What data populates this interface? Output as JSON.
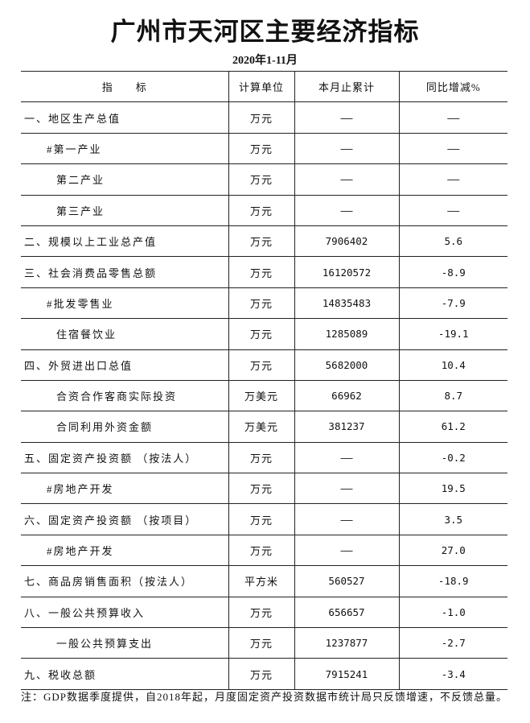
{
  "title": "广州市天河区主要经济指标",
  "subtitle": "2020年1-11月",
  "table": {
    "headers": [
      "指　　标",
      "计算单位",
      "本月止累计",
      "同比增减%"
    ],
    "rows": [
      {
        "name": "一、地区生产总值",
        "indent": 0,
        "unit": "万元",
        "cumulative": "——",
        "yoy": "——"
      },
      {
        "name": "#第一产业",
        "indent": 1,
        "unit": "万元",
        "cumulative": "——",
        "yoy": "——"
      },
      {
        "name": "第二产业",
        "indent": 2,
        "unit": "万元",
        "cumulative": "——",
        "yoy": "——"
      },
      {
        "name": "第三产业",
        "indent": 2,
        "unit": "万元",
        "cumulative": "——",
        "yoy": "——"
      },
      {
        "name": "二、规模以上工业总产值",
        "indent": 0,
        "unit": "万元",
        "cumulative": "7906402",
        "yoy": "5.6"
      },
      {
        "name": "三、社会消费品零售总额",
        "indent": 0,
        "unit": "万元",
        "cumulative": "16120572",
        "yoy": "-8.9"
      },
      {
        "name": "#批发零售业",
        "indent": 1,
        "unit": "万元",
        "cumulative": "14835483",
        "yoy": "-7.9"
      },
      {
        "name": "住宿餐饮业",
        "indent": 2,
        "unit": "万元",
        "cumulative": "1285089",
        "yoy": "-19.1"
      },
      {
        "name": "四、外贸进出口总值",
        "indent": 0,
        "unit": "万元",
        "cumulative": "5682000",
        "yoy": "10.4"
      },
      {
        "name": "合资合作客商实际投资",
        "indent": 2,
        "unit": "万美元",
        "cumulative": "66962",
        "yoy": "8.7"
      },
      {
        "name": "合同利用外资金额",
        "indent": 2,
        "unit": "万美元",
        "cumulative": "381237",
        "yoy": "61.2"
      },
      {
        "name": "五、固定资产投资额 （按法人）",
        "indent": 0,
        "unit": "万元",
        "cumulative": "——",
        "yoy": "-0.2"
      },
      {
        "name": "#房地产开发",
        "indent": 1,
        "unit": "万元",
        "cumulative": "——",
        "yoy": "19.5"
      },
      {
        "name": "六、固定资产投资额 （按项目）",
        "indent": 0,
        "unit": "万元",
        "cumulative": "——",
        "yoy": "3.5"
      },
      {
        "name": "#房地产开发",
        "indent": 1,
        "unit": "万元",
        "cumulative": "——",
        "yoy": "27.0"
      },
      {
        "name": "七、商品房销售面积（按法人）",
        "indent": 0,
        "unit": "平方米",
        "cumulative": "560527",
        "yoy": "-18.9"
      },
      {
        "name": "八、一般公共预算收入",
        "indent": 0,
        "unit": "万元",
        "cumulative": "656657",
        "yoy": "-1.0"
      },
      {
        "name": "一般公共预算支出",
        "indent": 2,
        "unit": "万元",
        "cumulative": "1237877",
        "yoy": "-2.7"
      },
      {
        "name": "九、税收总额",
        "indent": 0,
        "unit": "万元",
        "cumulative": "7915241",
        "yoy": "-3.4"
      }
    ]
  },
  "note": "注：GDP数据季度提供，自2018年起，月度固定资产投资数据市统计局只反馈增速，不反馈总量。"
}
